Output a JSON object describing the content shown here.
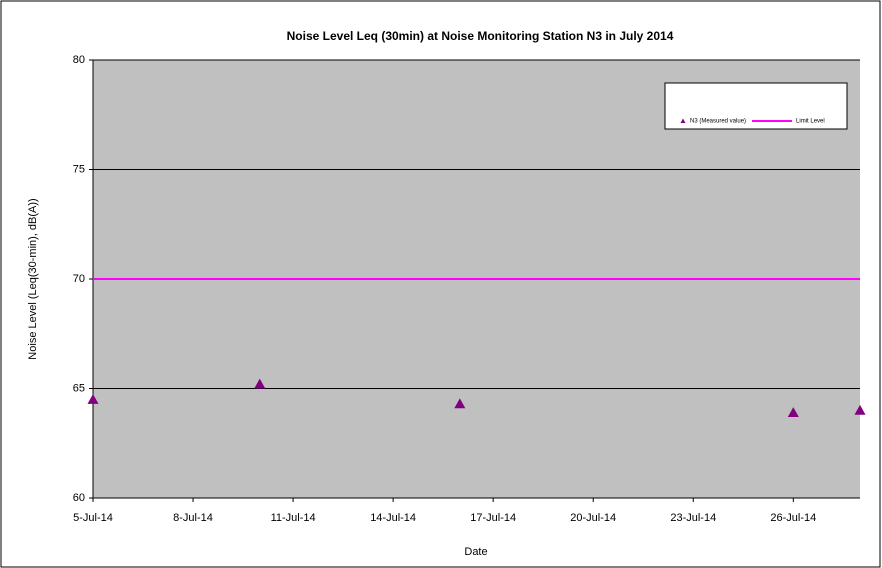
{
  "chart_data": {
    "type": "scatter",
    "title": "Noise Level Leq (30min) at Noise Monitoring Station N3 in July 2014",
    "x_label": "Date",
    "y_label": "Noise Level (Leq(30-min), dB(A))",
    "series": [
      {
        "name": "N3 (Measured value)",
        "color": "#800080",
        "marker": "triangle",
        "x": [
          "5-Jul-14",
          "10-Jul-14",
          "16-Jul-14",
          "26-Jul-14",
          "28-Jul-14"
        ],
        "values": [
          64.5,
          65.2,
          64.3,
          63.9,
          64.0
        ]
      },
      {
        "name": "Limit Level",
        "color": "#ff00ff",
        "marker": "line",
        "x": [
          "5-Jul-14",
          "28-Jul-14"
        ],
        "values": [
          70,
          70
        ]
      }
    ],
    "xlim": [
      "5-Jul-14",
      "28-Jul-14"
    ],
    "xticks": [
      "5-Jul-14",
      "8-Jul-14",
      "11-Jul-14",
      "14-Jul-14",
      "17-Jul-14",
      "20-Jul-14",
      "23-Jul-14",
      "26-Jul-14"
    ],
    "ylim": [
      60,
      80
    ],
    "yticks": [
      60,
      65,
      70,
      75,
      80
    ],
    "grid": true,
    "legend": "top-right",
    "plot_background": "#c0c0c0"
  }
}
